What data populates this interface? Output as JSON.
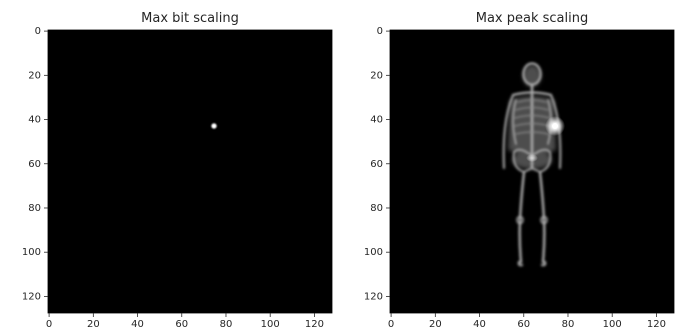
{
  "panels": [
    {
      "title": "Max bit scaling",
      "x_ticks": [
        "0",
        "20",
        "40",
        "60",
        "80",
        "100",
        "120"
      ],
      "y_ticks": [
        "0",
        "20",
        "40",
        "60",
        "80",
        "100",
        "120"
      ],
      "pixel_range": [
        0,
        128
      ],
      "background_color": "#000000",
      "tick_values": [
        0,
        20,
        40,
        60,
        80,
        100,
        120
      ]
    },
    {
      "title": "Max peak scaling",
      "x_ticks": [
        "0",
        "20",
        "40",
        "60",
        "80",
        "100",
        "120"
      ],
      "y_ticks": [
        "0",
        "20",
        "40",
        "60",
        "80",
        "100",
        "120"
      ],
      "pixel_range": [
        0,
        128
      ],
      "background_color": "#000000",
      "tick_values": [
        0,
        20,
        40,
        60,
        80,
        100,
        120
      ]
    }
  ],
  "image_content": {
    "subject": "whole-body-bone-scan",
    "hotspot_pixel": [
      74,
      43
    ]
  }
}
